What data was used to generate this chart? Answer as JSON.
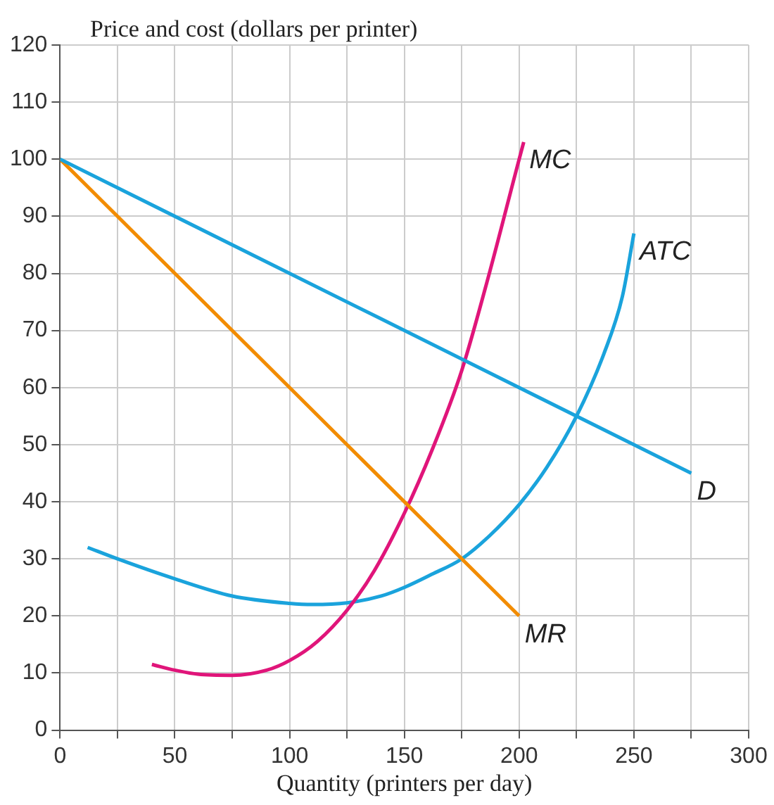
{
  "chart_data": {
    "type": "line",
    "ylabel": "Price and cost (dollars per printer)",
    "xlabel": "Quantity (printers per day)",
    "xlim": [
      0,
      300
    ],
    "xticks": [
      0,
      {
        "value": 25,
        "label": null
      },
      50,
      {
        "value": 75,
        "label": null
      },
      100,
      {
        "value": 125,
        "label": null
      },
      150,
      {
        "value": 175,
        "label": null
      },
      200,
      {
        "value": 225,
        "label": null
      },
      250,
      {
        "value": 275,
        "label": null
      },
      300
    ],
    "ylim": [
      0,
      120
    ],
    "yticks": [
      0,
      10,
      20,
      30,
      40,
      50,
      60,
      70,
      80,
      90,
      100,
      110,
      120
    ],
    "grid": true,
    "legend": false,
    "marker": "none",
    "line_style": "solid",
    "series": [
      {
        "name": "D",
        "color": "#1aa3dc",
        "x": [
          0,
          275
        ],
        "values": [
          100,
          45
        ]
      },
      {
        "name": "MR",
        "color": "#f28c00",
        "x": [
          0,
          200
        ],
        "values": [
          100,
          20
        ]
      },
      {
        "name": "MC",
        "color": "#e0157a",
        "x": [
          40,
          50,
          60,
          75,
          90,
          100,
          112,
          125,
          137,
          150,
          162,
          175,
          187,
          200,
          202
        ],
        "values": [
          11.5,
          10.5,
          9.8,
          9.6,
          10.5,
          12.2,
          15.5,
          21,
          28,
          38,
          49,
          63,
          80,
          100,
          103
        ]
      },
      {
        "name": "ATC",
        "color": "#1aa3dc",
        "x": [
          12,
          25,
          50,
          75,
          100,
          110,
          125,
          140,
          150,
          162,
          175,
          187,
          200,
          212,
          225,
          237,
          245,
          250
        ],
        "values": [
          32,
          30,
          26.5,
          23.5,
          22.2,
          22,
          22.3,
          23.5,
          25,
          27.3,
          30,
          34,
          39.5,
          46,
          55,
          66,
          76,
          87
        ]
      }
    ]
  }
}
